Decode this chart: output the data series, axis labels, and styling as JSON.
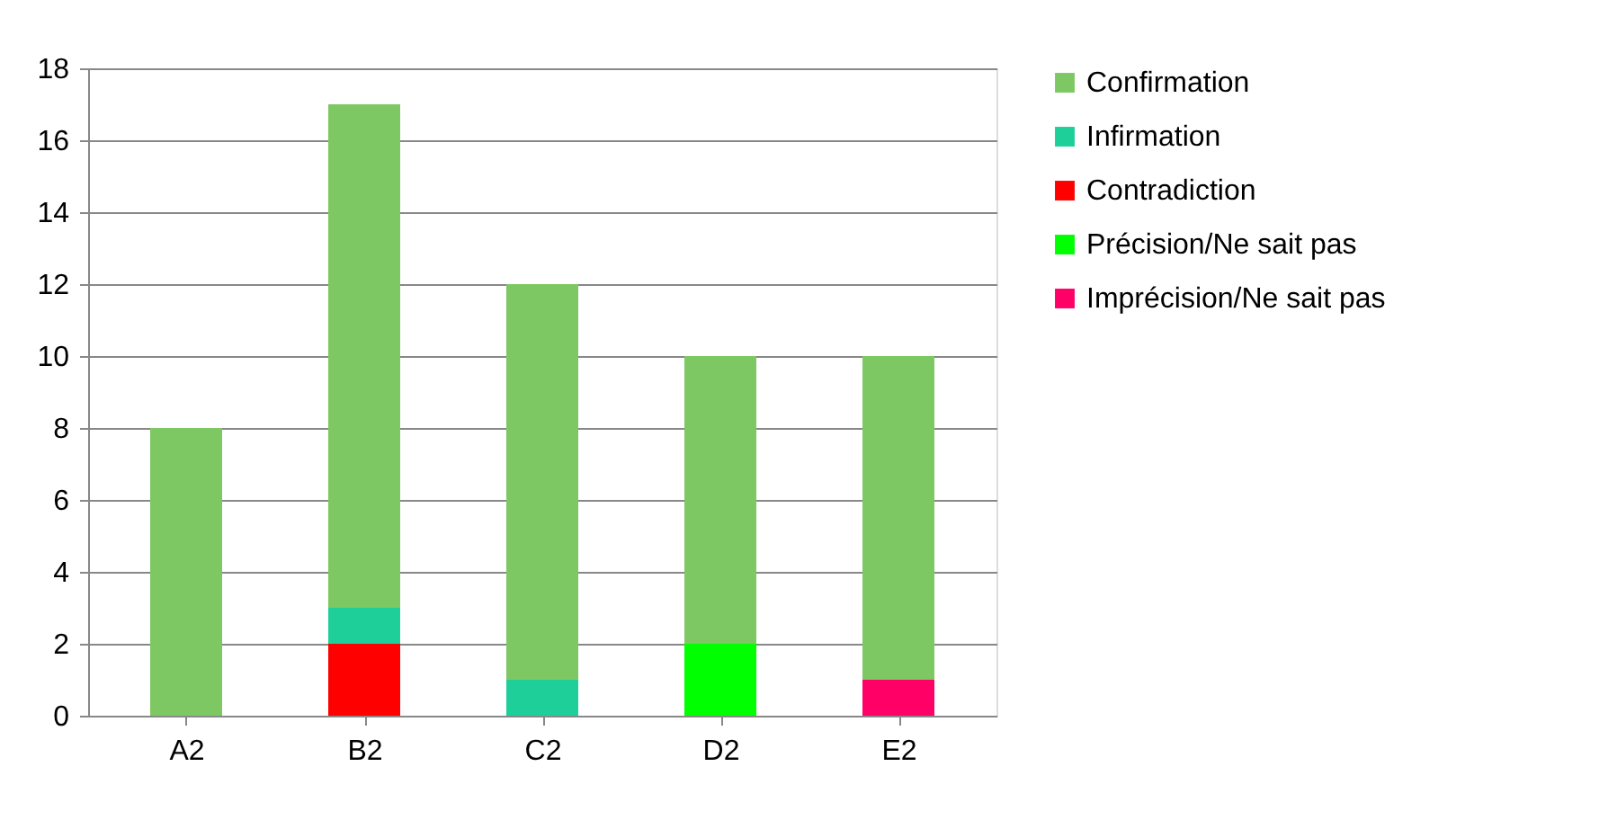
{
  "chart_data": {
    "type": "bar",
    "stacked": true,
    "categories": [
      "A2",
      "B2",
      "C2",
      "D2",
      "E2"
    ],
    "series": [
      {
        "name": "Imprécision/Ne sait pas",
        "color": "#ff0066",
        "values": [
          0,
          0,
          0,
          0,
          1
        ]
      },
      {
        "name": "Précision/Ne sait pas",
        "color": "#00ff00",
        "values": [
          0,
          0,
          0,
          2,
          0
        ]
      },
      {
        "name": "Contradiction",
        "color": "#ff0000",
        "values": [
          0,
          2,
          0,
          0,
          0
        ]
      },
      {
        "name": "Infirmation",
        "color": "#1fcf99",
        "values": [
          0,
          1,
          1,
          0,
          0
        ]
      },
      {
        "name": "Confirmation",
        "color": "#7ec864",
        "values": [
          8,
          14,
          11,
          8,
          9
        ]
      }
    ],
    "ylim": [
      0,
      18
    ],
    "yticks": [
      0,
      2,
      4,
      6,
      8,
      10,
      12,
      14,
      16,
      18
    ],
    "grid": "y",
    "legend": "right"
  }
}
